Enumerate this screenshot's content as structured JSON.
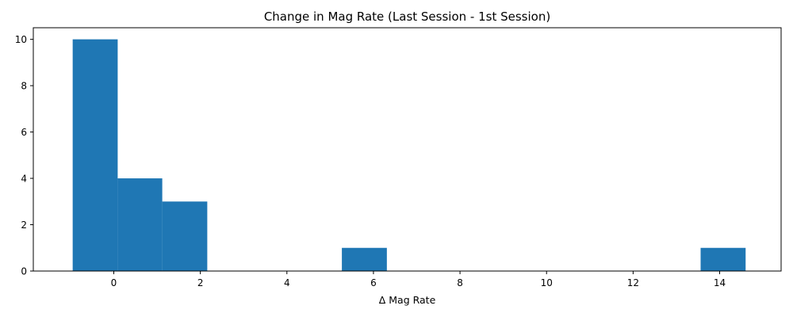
{
  "chart_data": {
    "type": "bar",
    "title": "Change in Mag Rate (Last Session - 1st Session)",
    "xlabel": "Δ Mag Rate",
    "ylabel": "",
    "xlim": [
      -1.86,
      15.42
    ],
    "ylim": [
      0,
      10.5
    ],
    "xticks": [
      0,
      2,
      4,
      6,
      8,
      10,
      12,
      14
    ],
    "yticks": [
      0,
      2,
      4,
      6,
      8,
      10
    ],
    "bins": [
      {
        "start": -0.95,
        "end": 0.09,
        "count": 10
      },
      {
        "start": 0.09,
        "end": 1.12,
        "count": 4
      },
      {
        "start": 1.12,
        "end": 2.16,
        "count": 3
      },
      {
        "start": 2.16,
        "end": 3.2,
        "count": 0
      },
      {
        "start": 3.2,
        "end": 4.23,
        "count": 0
      },
      {
        "start": 4.23,
        "end": 5.27,
        "count": 0
      },
      {
        "start": 5.27,
        "end": 6.31,
        "count": 1
      },
      {
        "start": 6.31,
        "end": 7.34,
        "count": 0
      },
      {
        "start": 7.34,
        "end": 8.38,
        "count": 0
      },
      {
        "start": 8.38,
        "end": 9.42,
        "count": 0
      },
      {
        "start": 9.42,
        "end": 10.45,
        "count": 0
      },
      {
        "start": 10.45,
        "end": 11.49,
        "count": 0
      },
      {
        "start": 11.49,
        "end": 12.53,
        "count": 0
      },
      {
        "start": 12.53,
        "end": 13.56,
        "count": 0
      },
      {
        "start": 13.56,
        "end": 14.6,
        "count": 1
      }
    ],
    "bar_color": "#1f77b4",
    "grid": false,
    "legend": "none"
  }
}
